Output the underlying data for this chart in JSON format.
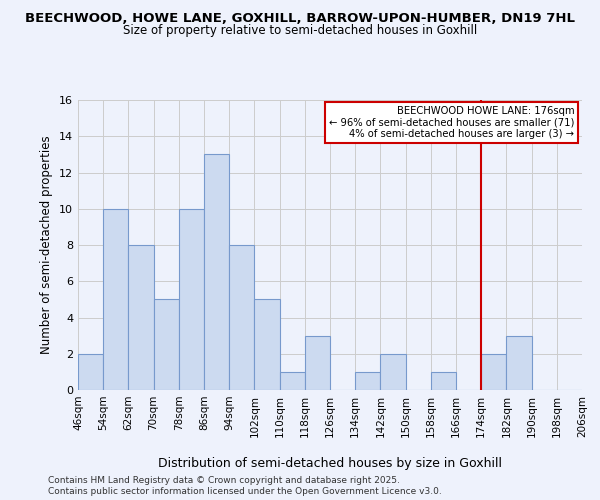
{
  "title": "BEECHWOOD, HOWE LANE, GOXHILL, BARROW-UPON-HUMBER, DN19 7HL",
  "subtitle": "Size of property relative to semi-detached houses in Goxhill",
  "xlabel": "Distribution of semi-detached houses by size in Goxhill",
  "ylabel": "Number of semi-detached properties",
  "bin_edges": [
    46,
    54,
    62,
    70,
    78,
    86,
    94,
    102,
    110,
    118,
    126,
    134,
    142,
    150,
    158,
    166,
    174,
    182,
    190,
    198,
    206
  ],
  "counts": [
    2,
    10,
    8,
    5,
    10,
    13,
    8,
    5,
    1,
    3,
    0,
    1,
    2,
    0,
    1,
    0,
    2,
    3,
    0,
    0
  ],
  "bar_color": "#ccdaf0",
  "bar_edgecolor": "#7799cc",
  "vline_x": 174,
  "vline_color": "#cc0000",
  "annotation_title": "BEECHWOOD HOWE LANE: 176sqm",
  "annotation_line1": "← 96% of semi-detached houses are smaller (71)",
  "annotation_line2": "4% of semi-detached houses are larger (3) →",
  "annotation_box_color": "#ffffff",
  "annotation_box_edgecolor": "#cc0000",
  "ylim": [
    0,
    16
  ],
  "yticks": [
    0,
    2,
    4,
    6,
    8,
    10,
    12,
    14,
    16
  ],
  "background_color": "#eef2fc",
  "grid_color": "#cccccc",
  "footer_line1": "Contains HM Land Registry data © Crown copyright and database right 2025.",
  "footer_line2": "Contains public sector information licensed under the Open Government Licence v3.0."
}
